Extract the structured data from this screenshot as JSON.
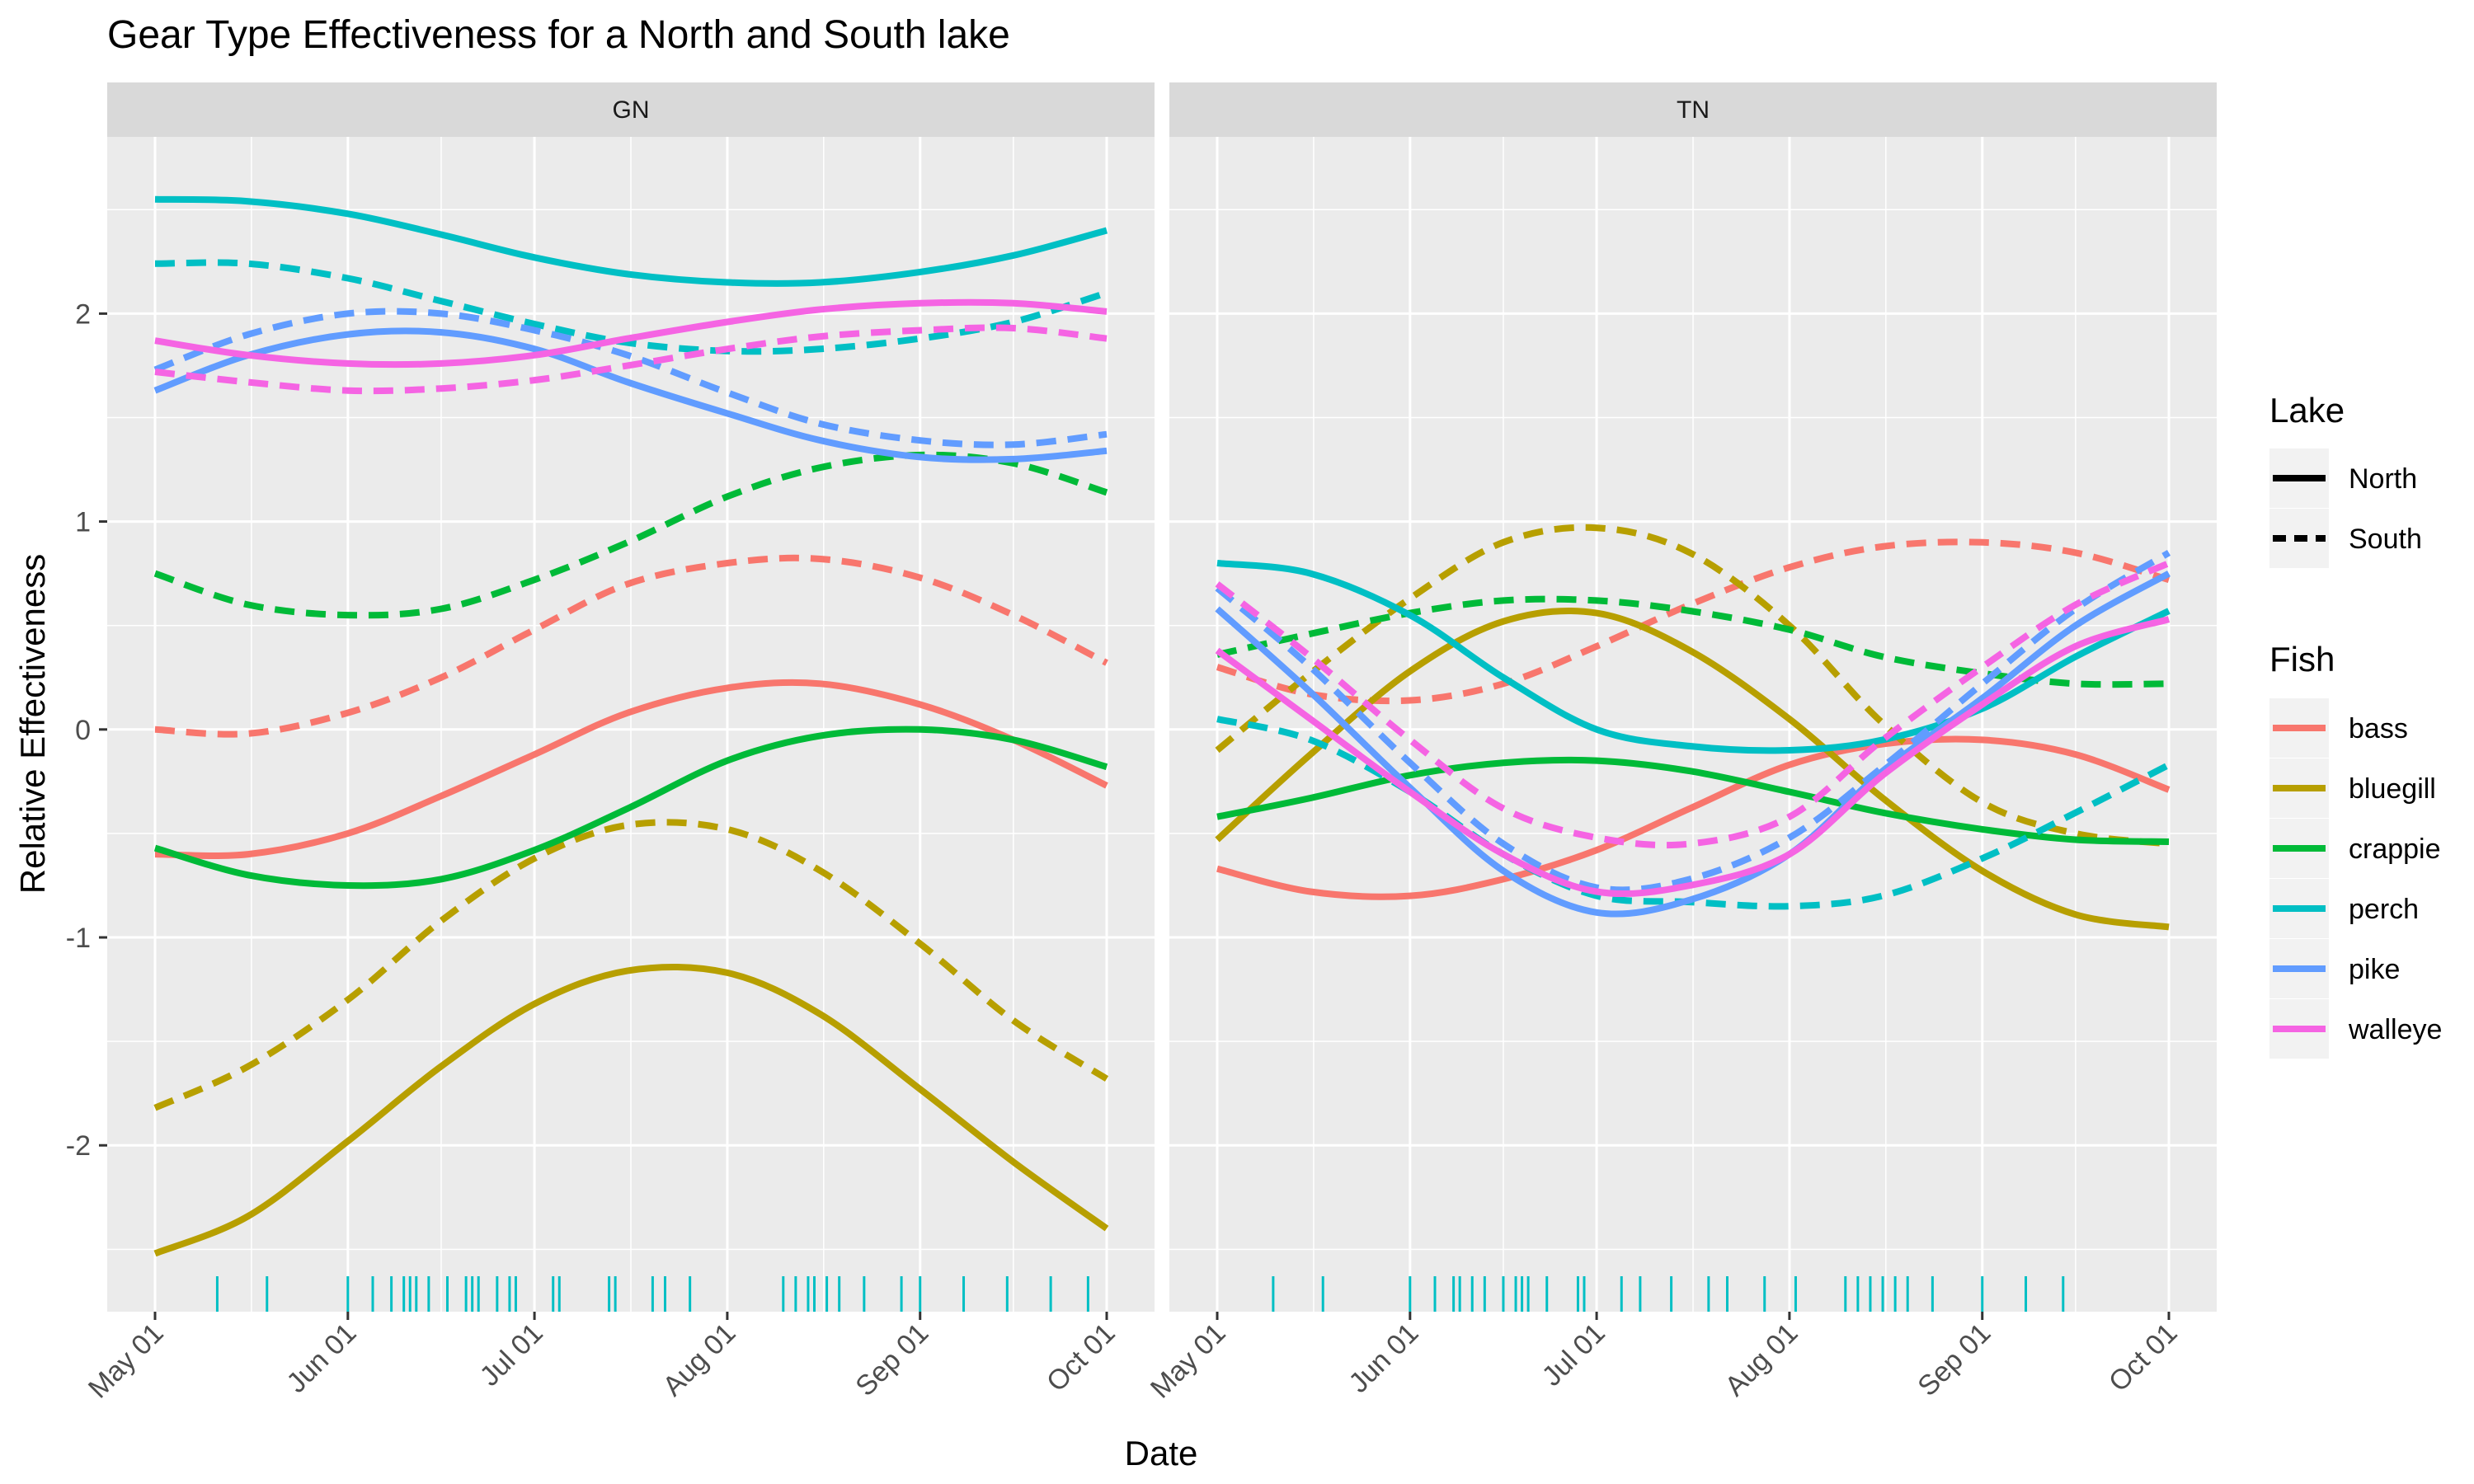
{
  "chart_data": {
    "type": "line",
    "title": "Gear Type Effectiveness for a North and South lake",
    "xlabel": "Date",
    "ylabel": "Relative Effectiveness",
    "x_ticks": [
      "May 01",
      "Jun 01",
      "Jul 01",
      "Aug 01",
      "Sep 01",
      "Oct 01"
    ],
    "y_ticks": [
      -2,
      -1,
      0,
      1,
      2
    ],
    "xlim": [
      "2023-05-01",
      "2023-10-01"
    ],
    "ylim": [
      -2.8,
      2.85
    ],
    "grid": true,
    "legend_position": "right",
    "legends": {
      "lake": {
        "title": "Lake",
        "items": [
          {
            "label": "North",
            "linetype": "solid"
          },
          {
            "label": "South",
            "linetype": "dashed"
          }
        ]
      },
      "fish": {
        "title": "Fish",
        "items": [
          {
            "label": "bass",
            "color": "#F8766D"
          },
          {
            "label": "bluegill",
            "color": "#B79F00"
          },
          {
            "label": "crappie",
            "color": "#00BA38"
          },
          {
            "label": "perch",
            "color": "#00BFC4"
          },
          {
            "label": "pike",
            "color": "#619CFF"
          },
          {
            "label": "walleye",
            "color": "#F564E3"
          }
        ]
      }
    },
    "x_dates": [
      "2023-05-01",
      "2023-05-16",
      "2023-06-01",
      "2023-06-16",
      "2023-07-01",
      "2023-07-16",
      "2023-08-01",
      "2023-08-16",
      "2023-09-01",
      "2023-09-16",
      "2023-10-01"
    ],
    "panels": [
      {
        "name": "GN",
        "rug_dates": [
          "2023-05-11",
          "2023-05-19",
          "2023-06-01",
          "2023-06-05",
          "2023-06-08",
          "2023-06-10",
          "2023-06-11",
          "2023-06-12",
          "2023-06-14",
          "2023-06-17",
          "2023-06-20",
          "2023-06-21",
          "2023-06-22",
          "2023-06-25",
          "2023-06-27",
          "2023-06-28",
          "2023-07-04",
          "2023-07-05",
          "2023-07-13",
          "2023-07-14",
          "2023-07-20",
          "2023-07-22",
          "2023-07-26",
          "2023-08-10",
          "2023-08-12",
          "2023-08-14",
          "2023-08-15",
          "2023-08-17",
          "2023-08-19",
          "2023-08-23",
          "2023-08-29",
          "2023-09-01",
          "2023-09-08",
          "2023-09-15",
          "2023-09-22",
          "2023-09-28"
        ],
        "series": [
          {
            "fish": "bass",
            "lake": "North",
            "y": [
              -0.6,
              -0.6,
              -0.5,
              -0.32,
              -0.12,
              0.08,
              0.2,
              0.22,
              0.12,
              -0.05,
              -0.27
            ]
          },
          {
            "fish": "bass",
            "lake": "South",
            "y": [
              0.0,
              -0.02,
              0.08,
              0.25,
              0.48,
              0.7,
              0.8,
              0.82,
              0.73,
              0.55,
              0.32
            ]
          },
          {
            "fish": "bluegill",
            "lake": "North",
            "y": [
              -2.52,
              -2.34,
              -1.98,
              -1.62,
              -1.32,
              -1.16,
              -1.17,
              -1.37,
              -1.73,
              -2.08,
              -2.4
            ]
          },
          {
            "fish": "bluegill",
            "lake": "South",
            "y": [
              -1.82,
              -1.62,
              -1.3,
              -0.92,
              -0.62,
              -0.46,
              -0.48,
              -0.68,
              -1.03,
              -1.4,
              -1.68
            ]
          },
          {
            "fish": "crappie",
            "lake": "North",
            "y": [
              -0.57,
              -0.7,
              -0.75,
              -0.72,
              -0.58,
              -0.38,
              -0.15,
              -0.03,
              0.0,
              -0.05,
              -0.18
            ]
          },
          {
            "fish": "crappie",
            "lake": "South",
            "y": [
              0.75,
              0.6,
              0.55,
              0.58,
              0.72,
              0.9,
              1.12,
              1.26,
              1.32,
              1.28,
              1.14
            ]
          },
          {
            "fish": "perch",
            "lake": "North",
            "y": [
              2.55,
              2.54,
              2.48,
              2.38,
              2.27,
              2.19,
              2.15,
              2.15,
              2.2,
              2.28,
              2.4
            ]
          },
          {
            "fish": "perch",
            "lake": "South",
            "y": [
              2.24,
              2.24,
              2.17,
              2.06,
              1.95,
              1.86,
              1.82,
              1.83,
              1.88,
              1.96,
              2.1
            ]
          },
          {
            "fish": "pike",
            "lake": "North",
            "y": [
              1.63,
              1.8,
              1.9,
              1.91,
              1.83,
              1.67,
              1.52,
              1.39,
              1.31,
              1.3,
              1.34
            ]
          },
          {
            "fish": "pike",
            "lake": "South",
            "y": [
              1.73,
              1.9,
              2.0,
              2.0,
              1.92,
              1.8,
              1.62,
              1.47,
              1.39,
              1.37,
              1.42
            ]
          },
          {
            "fish": "walleye",
            "lake": "North",
            "y": [
              1.87,
              1.8,
              1.76,
              1.76,
              1.8,
              1.88,
              1.96,
              2.02,
              2.05,
              2.05,
              2.01
            ]
          },
          {
            "fish": "walleye",
            "lake": "South",
            "y": [
              1.72,
              1.67,
              1.63,
              1.64,
              1.68,
              1.75,
              1.83,
              1.89,
              1.92,
              1.93,
              1.88
            ]
          }
        ]
      },
      {
        "name": "TN",
        "rug_dates": [
          "2023-05-10",
          "2023-05-18",
          "2023-06-01",
          "2023-06-05",
          "2023-06-08",
          "2023-06-09",
          "2023-06-11",
          "2023-06-13",
          "2023-06-16",
          "2023-06-18",
          "2023-06-19",
          "2023-06-20",
          "2023-06-23",
          "2023-06-28",
          "2023-06-29",
          "2023-07-05",
          "2023-07-08",
          "2023-07-13",
          "2023-07-19",
          "2023-07-22",
          "2023-07-28",
          "2023-08-02",
          "2023-08-10",
          "2023-08-12",
          "2023-08-14",
          "2023-08-16",
          "2023-08-18",
          "2023-08-20",
          "2023-08-24",
          "2023-09-01",
          "2023-09-08",
          "2023-09-14"
        ],
        "series": [
          {
            "fish": "bass",
            "lake": "North",
            "y": [
              -0.67,
              -0.78,
              -0.8,
              -0.72,
              -0.58,
              -0.38,
              -0.17,
              -0.07,
              -0.05,
              -0.12,
              -0.29
            ]
          },
          {
            "fish": "bass",
            "lake": "South",
            "y": [
              0.3,
              0.17,
              0.14,
              0.22,
              0.4,
              0.6,
              0.78,
              0.88,
              0.9,
              0.85,
              0.72
            ]
          },
          {
            "fish": "bluegill",
            "lake": "North",
            "y": [
              -0.53,
              -0.12,
              0.28,
              0.52,
              0.56,
              0.38,
              0.05,
              -0.33,
              -0.68,
              -0.89,
              -0.95
            ]
          },
          {
            "fish": "bluegill",
            "lake": "South",
            "y": [
              -0.1,
              0.27,
              0.63,
              0.9,
              0.97,
              0.85,
              0.5,
              0.03,
              -0.35,
              -0.5,
              -0.55
            ]
          },
          {
            "fish": "crappie",
            "lake": "North",
            "y": [
              -0.42,
              -0.33,
              -0.22,
              -0.16,
              -0.15,
              -0.2,
              -0.3,
              -0.4,
              -0.48,
              -0.53,
              -0.54
            ]
          },
          {
            "fish": "crappie",
            "lake": "South",
            "y": [
              0.36,
              0.46,
              0.56,
              0.62,
              0.62,
              0.57,
              0.48,
              0.35,
              0.27,
              0.22,
              0.22
            ]
          },
          {
            "fish": "perch",
            "lake": "North",
            "y": [
              0.8,
              0.75,
              0.55,
              0.25,
              0.0,
              -0.08,
              -0.1,
              -0.05,
              0.1,
              0.35,
              0.57
            ]
          },
          {
            "fish": "perch",
            "lake": "South",
            "y": [
              0.05,
              -0.05,
              -0.3,
              -0.6,
              -0.8,
              -0.83,
              -0.85,
              -0.8,
              -0.62,
              -0.4,
              -0.17
            ]
          },
          {
            "fish": "pike",
            "lake": "North",
            "y": [
              0.58,
              0.18,
              -0.28,
              -0.68,
              -0.88,
              -0.82,
              -0.6,
              -0.2,
              0.15,
              0.5,
              0.75
            ]
          },
          {
            "fish": "pike",
            "lake": "South",
            "y": [
              0.68,
              0.3,
              -0.16,
              -0.55,
              -0.76,
              -0.72,
              -0.52,
              -0.18,
              0.22,
              0.58,
              0.85
            ]
          },
          {
            "fish": "walleye",
            "lake": "North",
            "y": [
              0.38,
              0.05,
              -0.3,
              -0.6,
              -0.78,
              -0.75,
              -0.6,
              -0.22,
              0.12,
              0.4,
              0.53
            ]
          },
          {
            "fish": "walleye",
            "lake": "South",
            "y": [
              0.7,
              0.35,
              -0.05,
              -0.38,
              -0.52,
              -0.55,
              -0.42,
              -0.05,
              0.3,
              0.6,
              0.8
            ]
          }
        ]
      }
    ]
  }
}
